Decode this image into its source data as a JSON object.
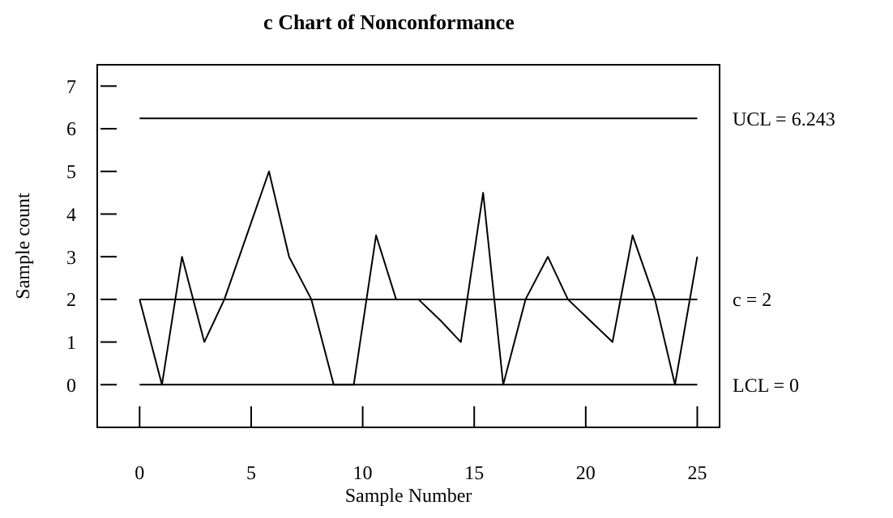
{
  "chart_data": {
    "type": "line",
    "title": "c Chart of Nonconformance",
    "xlabel": "Sample Number",
    "ylabel": "Sample count",
    "x": [
      0,
      1,
      1.9,
      2.9,
      3.8,
      4.8,
      5.8,
      6.7,
      7.7,
      8.7,
      9.6,
      10.6,
      11.5,
      12.5,
      13.5,
      14.4,
      15.4,
      16.3,
      17.3,
      18.3,
      19.2,
      20.2,
      21.2,
      22.1,
      23.1,
      24,
      25
    ],
    "values": [
      2,
      0,
      3,
      1,
      2,
      3.5,
      5,
      3,
      2,
      0,
      0,
      3.5,
      2,
      2,
      1.5,
      1,
      4.5,
      0,
      2,
      3,
      2,
      1.5,
      1,
      3.5,
      2,
      0,
      3
    ],
    "color": "#000000",
    "marker": "none",
    "line_style": "solid",
    "grid": false,
    "xlim": [
      -1.9,
      26
    ],
    "xticks": [
      0,
      5,
      10,
      15,
      20,
      25
    ],
    "ylim": [
      -1,
      7.5
    ],
    "yticks": [
      0,
      1,
      2,
      3,
      4,
      5,
      6,
      7
    ],
    "ref_lines": [
      {
        "axis": "y",
        "value": 6.243,
        "label": "UCL = 6.243",
        "color": "#000000"
      },
      {
        "axis": "y",
        "value": 2,
        "label": "c = 2",
        "color": "#000000"
      },
      {
        "axis": "y",
        "value": 0,
        "label": "LCL = 0",
        "color": "#000000"
      }
    ]
  }
}
